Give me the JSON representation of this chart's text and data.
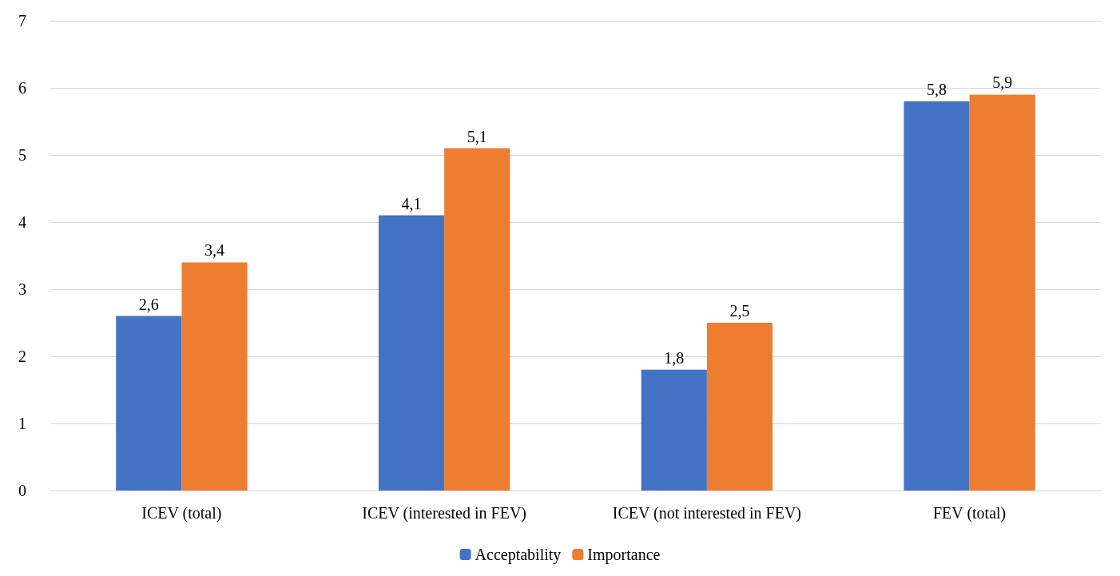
{
  "chart_data": {
    "type": "bar",
    "categories": [
      "ICEV (total)",
      "ICEV (interested in FEV)",
      "ICEV (not interested in FEV)",
      "FEV (total)"
    ],
    "series": [
      {
        "name": "Acceptability",
        "color": "#4472c4",
        "values": [
          2.6,
          4.1,
          1.8,
          5.8
        ],
        "value_labels": [
          "2,6",
          "4,1",
          "1,8",
          "5,8"
        ]
      },
      {
        "name": "Importance",
        "color": "#ed7d31",
        "values": [
          3.4,
          5.1,
          2.5,
          5.9
        ],
        "value_labels": [
          "3,4",
          "5,1",
          "2,5",
          "5,9"
        ]
      }
    ],
    "ylim": [
      0,
      7
    ],
    "yticks": [
      0,
      1,
      2,
      3,
      4,
      5,
      6,
      7
    ],
    "grid": "y",
    "legend": "bottom"
  }
}
